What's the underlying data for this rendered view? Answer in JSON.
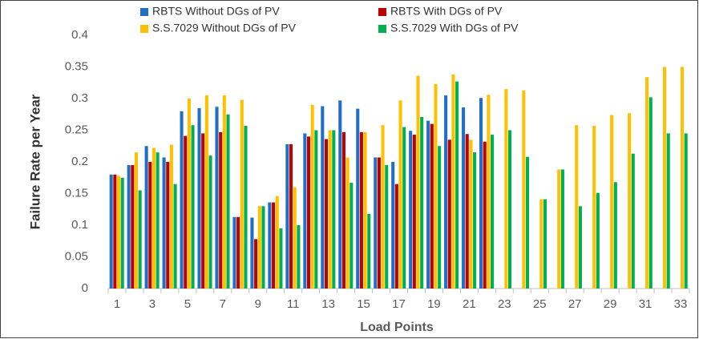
{
  "chart_data": {
    "type": "bar",
    "y_label": "Failure Rate per Year",
    "x_label": "Load Points",
    "categories": [
      "1",
      null,
      "3",
      null,
      "5",
      null,
      "7",
      null,
      "9",
      null,
      "11",
      null,
      "13",
      null,
      "15",
      null,
      "17",
      null,
      "19",
      null,
      "21",
      null,
      "23",
      null,
      "25",
      null,
      "27",
      null,
      "29",
      null,
      "31",
      null,
      "33"
    ],
    "series": [
      {
        "name": "RBTS Without DGs of PV",
        "color": "#1f6fc5",
        "values": [
          0.18,
          0.195,
          0.225,
          0.207,
          0.28,
          0.285,
          0.287,
          0.113,
          0.112,
          0.136,
          0.228,
          0.245,
          0.288,
          0.297,
          0.284,
          0.207,
          0.2,
          0.249,
          0.265,
          0.305,
          0.286,
          0.301,
          null,
          null,
          null,
          null,
          null,
          null,
          null,
          null,
          null,
          null,
          null
        ]
      },
      {
        "name": "RBTS With DGs of PV",
        "color": "#c00000",
        "values": [
          0.18,
          0.195,
          0.2,
          0.2,
          0.241,
          0.245,
          0.247,
          0.113,
          0.078,
          0.136,
          0.228,
          0.24,
          0.236,
          0.247,
          0.247,
          0.207,
          0.165,
          0.243,
          0.26,
          0.235,
          0.244,
          0.232,
          null,
          null,
          null,
          null,
          null,
          null,
          null,
          null,
          null,
          null,
          null
        ]
      },
      {
        "name": "S.S.7029 Without DGs of PV",
        "color": "#ffc000",
        "values": [
          0.178,
          0.215,
          0.222,
          0.227,
          0.3,
          0.305,
          0.305,
          0.298,
          0.13,
          0.146,
          0.16,
          0.29,
          0.25,
          0.207,
          0.247,
          0.258,
          0.297,
          0.336,
          0.323,
          0.338,
          0.235,
          0.306,
          0.315,
          0.313,
          0.141,
          0.188,
          0.258,
          0.257,
          0.274,
          0.277,
          0.334,
          0.35,
          0.35
        ]
      },
      {
        "name": "S.S.7029 With DGs of PV",
        "color": "#00b050",
        "values": [
          0.175,
          0.155,
          0.215,
          0.165,
          0.258,
          0.21,
          0.275,
          0.257,
          0.13,
          0.095,
          0.1,
          0.25,
          0.25,
          0.167,
          0.118,
          0.195,
          0.255,
          0.271,
          0.225,
          0.327,
          0.215,
          0.243,
          0.25,
          0.208,
          0.141,
          0.188,
          0.13,
          0.151,
          0.168,
          0.213,
          0.302,
          0.245,
          0.245
        ]
      }
    ],
    "ylim": [
      0,
      0.4
    ],
    "yticks": [
      0,
      0.05,
      0.1,
      0.15,
      0.2,
      0.25,
      0.3,
      0.35,
      0.4
    ],
    "grid": false
  }
}
